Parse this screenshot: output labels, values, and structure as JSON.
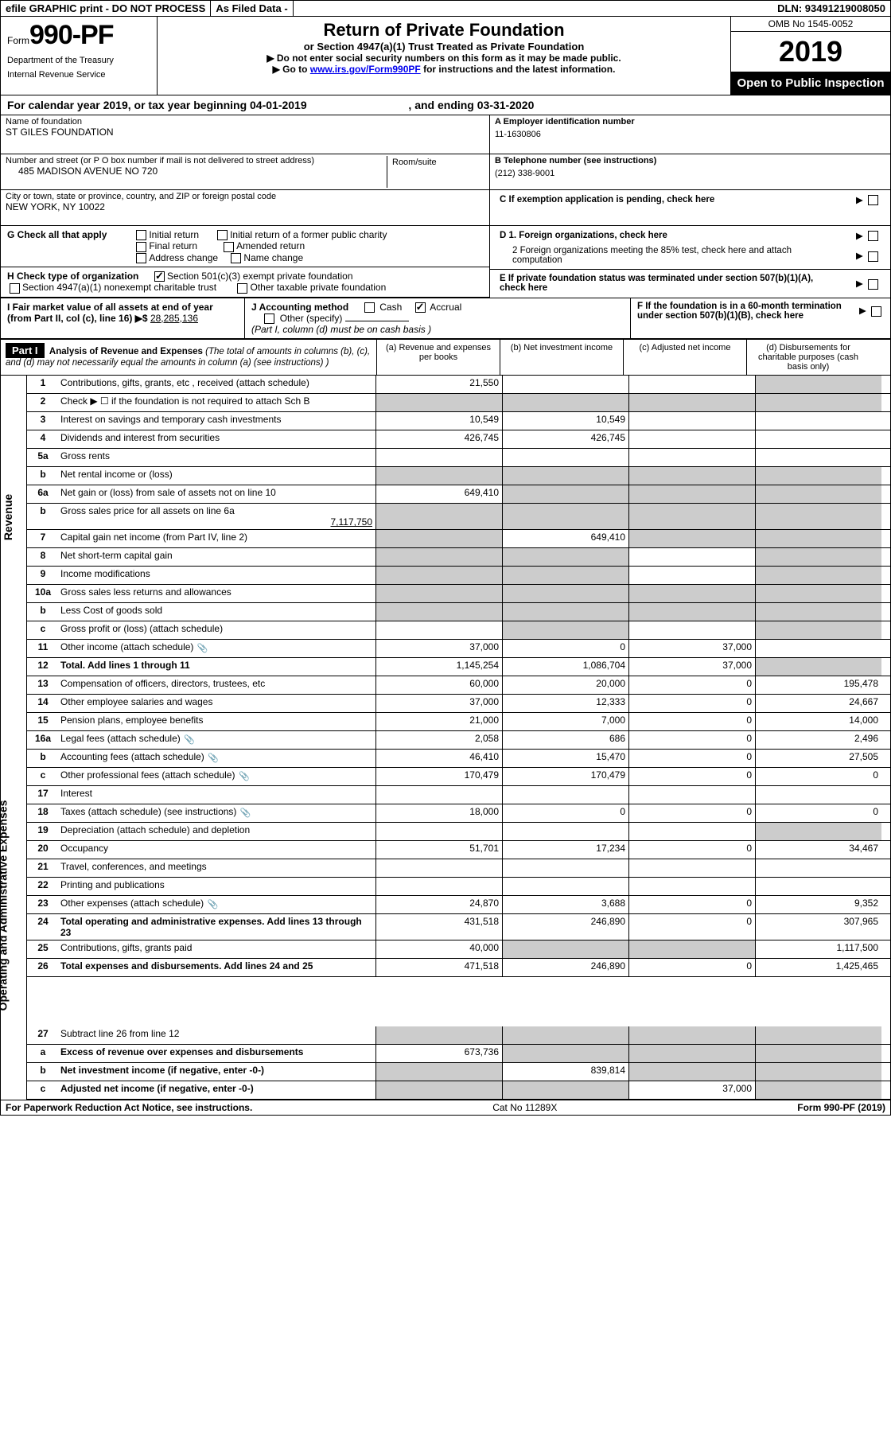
{
  "top": {
    "efile": "efile GRAPHIC print - DO NOT PROCESS",
    "asfiled": "As Filed Data -",
    "dln": "DLN: 93491219008050"
  },
  "header": {
    "form_label": "Form",
    "form_no": "990-PF",
    "dept1": "Department of the Treasury",
    "dept2": "Internal Revenue Service",
    "title": "Return of Private Foundation",
    "sub": "or Section 4947(a)(1) Trust Treated as Private Foundation",
    "note1": "▶ Do not enter social security numbers on this form as it may be made public.",
    "note2_pre": "▶ Go to ",
    "note2_link": "www.irs.gov/Form990PF",
    "note2_post": " for instructions and the latest information.",
    "omb": "OMB No 1545-0052",
    "year": "2019",
    "open": "Open to Public Inspection"
  },
  "cal": {
    "text": "For calendar year 2019, or tax year beginning 04-01-2019",
    "mid": ", and ending 03-31-2020"
  },
  "entity": {
    "name_lbl": "Name of foundation",
    "name": "ST GILES FOUNDATION",
    "addr_lbl": "Number and street (or P O  box number if mail is not delivered to street address)",
    "room_lbl": "Room/suite",
    "addr": "485 MADISON AVENUE NO 720",
    "city_lbl": "City or town, state or province, country, and ZIP or foreign postal code",
    "city": "NEW YORK, NY  10022"
  },
  "right": {
    "a_lbl": "A Employer identification number",
    "a_val": "11-1630806",
    "b_lbl": "B Telephone number (see instructions)",
    "b_val": "(212) 338-9001",
    "c_lbl": "C  If exemption application is pending, check here",
    "d1": "D 1. Foreign organizations, check here",
    "d2": "2  Foreign organizations meeting the 85% test, check here and attach computation",
    "e": "E  If private foundation status was terminated under section 507(b)(1)(A), check here",
    "f": "F  If the foundation is in a 60-month termination under section 507(b)(1)(B), check here"
  },
  "g": {
    "label": "G Check all that apply",
    "opts": [
      "Initial return",
      "Initial return of a former public charity",
      "Final return",
      "Amended return",
      "Address change",
      "Name change"
    ]
  },
  "h": {
    "label": "H Check type of organization",
    "opt1": "Section 501(c)(3) exempt private foundation",
    "opt2": "Section 4947(a)(1) nonexempt charitable trust",
    "opt3": "Other taxable private foundation"
  },
  "i": {
    "label": "I Fair market value of all assets at end of year (from Part II, col  (c), line 16) ▶$  ",
    "val": "28,285,136"
  },
  "j": {
    "label": "J Accounting method",
    "cash": "Cash",
    "accrual": "Accrual",
    "other": "Other (specify)",
    "note": "(Part I, column (d) must be on cash basis )"
  },
  "part1": {
    "label": "Part I",
    "title": "Analysis of Revenue and Expenses",
    "title_note": " (The total of amounts in columns (b), (c), and (d) may not necessarily equal the amounts in column (a) (see instructions) )",
    "col_a": "(a)  Revenue and expenses per books",
    "col_b": "(b)  Net investment income",
    "col_c": "(c)  Adjusted net income",
    "col_d": "(d)  Disbursements for charitable purposes (cash basis only)"
  },
  "side": {
    "rev": "Revenue",
    "oae": "Operating and Administrative Expenses"
  },
  "rows": {
    "r1": {
      "n": "1",
      "l": "Contributions, gifts, grants, etc , received (attach schedule)",
      "a": "21,550"
    },
    "r2": {
      "n": "2",
      "l": "Check ▶ ☐ if the foundation is not required to attach Sch  B"
    },
    "r3": {
      "n": "3",
      "l": "Interest on savings and temporary cash investments",
      "a": "10,549",
      "b": "10,549"
    },
    "r4": {
      "n": "4",
      "l": "Dividends and interest from securities",
      "a": "426,745",
      "b": "426,745"
    },
    "r5a": {
      "n": "5a",
      "l": "Gross rents"
    },
    "r5b": {
      "n": "b",
      "l": "Net rental income or (loss)"
    },
    "r6a": {
      "n": "6a",
      "l": "Net gain or (loss) from sale of assets not on line 10",
      "a": "649,410"
    },
    "r6b": {
      "n": "b",
      "l": "Gross sales price for all assets on line 6a",
      "u": "7,117,750"
    },
    "r7": {
      "n": "7",
      "l": "Capital gain net income (from Part IV, line 2)",
      "b": "649,410"
    },
    "r8": {
      "n": "8",
      "l": "Net short-term capital gain"
    },
    "r9": {
      "n": "9",
      "l": "Income modifications"
    },
    "r10a": {
      "n": "10a",
      "l": "Gross sales less returns and allowances"
    },
    "r10b": {
      "n": "b",
      "l": "Less  Cost of goods sold"
    },
    "r10c": {
      "n": "c",
      "l": "Gross profit or (loss) (attach schedule)"
    },
    "r11": {
      "n": "11",
      "l": "Other income (attach schedule)",
      "a": "37,000",
      "b": "0",
      "c": "37,000",
      "link": true
    },
    "r12": {
      "n": "12",
      "l": "Total. Add lines 1 through 11",
      "a": "1,145,254",
      "b": "1,086,704",
      "c": "37,000",
      "bold": true
    },
    "r13": {
      "n": "13",
      "l": "Compensation of officers, directors, trustees, etc",
      "a": "60,000",
      "b": "20,000",
      "c": "0",
      "d": "195,478"
    },
    "r14": {
      "n": "14",
      "l": "Other employee salaries and wages",
      "a": "37,000",
      "b": "12,333",
      "c": "0",
      "d": "24,667"
    },
    "r15": {
      "n": "15",
      "l": "Pension plans, employee benefits",
      "a": "21,000",
      "b": "7,000",
      "c": "0",
      "d": "14,000"
    },
    "r16a": {
      "n": "16a",
      "l": "Legal fees (attach schedule)",
      "a": "2,058",
      "b": "686",
      "c": "0",
      "d": "2,496",
      "link": true
    },
    "r16b": {
      "n": "b",
      "l": "Accounting fees (attach schedule)",
      "a": "46,410",
      "b": "15,470",
      "c": "0",
      "d": "27,505",
      "link": true
    },
    "r16c": {
      "n": "c",
      "l": "Other professional fees (attach schedule)",
      "a": "170,479",
      "b": "170,479",
      "c": "0",
      "d": "0",
      "link": true
    },
    "r17": {
      "n": "17",
      "l": "Interest"
    },
    "r18": {
      "n": "18",
      "l": "Taxes (attach schedule) (see instructions)",
      "a": "18,000",
      "b": "0",
      "c": "0",
      "d": "0",
      "link": true
    },
    "r19": {
      "n": "19",
      "l": "Depreciation (attach schedule) and depletion"
    },
    "r20": {
      "n": "20",
      "l": "Occupancy",
      "a": "51,701",
      "b": "17,234",
      "c": "0",
      "d": "34,467"
    },
    "r21": {
      "n": "21",
      "l": "Travel, conferences, and meetings"
    },
    "r22": {
      "n": "22",
      "l": "Printing and publications"
    },
    "r23": {
      "n": "23",
      "l": "Other expenses (attach schedule)",
      "a": "24,870",
      "b": "3,688",
      "c": "0",
      "d": "9,352",
      "link": true
    },
    "r24": {
      "n": "24",
      "l": "Total operating and administrative expenses. Add lines 13 through 23",
      "a": "431,518",
      "b": "246,890",
      "c": "0",
      "d": "307,965",
      "bold": true
    },
    "r25": {
      "n": "25",
      "l": "Contributions, gifts, grants paid",
      "a": "40,000",
      "d": "1,117,500"
    },
    "r26": {
      "n": "26",
      "l": "Total expenses and disbursements. Add lines 24 and 25",
      "a": "471,518",
      "b": "246,890",
      "c": "0",
      "d": "1,425,465",
      "bold": true
    },
    "r27": {
      "n": "27",
      "l": "Subtract line 26 from line 12"
    },
    "r27a": {
      "n": "a",
      "l": "Excess of revenue over expenses and disbursements",
      "a": "673,736",
      "bold": true
    },
    "r27b": {
      "n": "b",
      "l": "Net investment income (if negative, enter -0-)",
      "b": "839,814",
      "bold": true
    },
    "r27c": {
      "n": "c",
      "l": "Adjusted net income (if negative, enter -0-)",
      "c": "37,000",
      "bold": true
    }
  },
  "footer": {
    "left": "For Paperwork Reduction Act Notice, see instructions.",
    "mid": "Cat  No  11289X",
    "right": "Form 990-PF (2019)"
  }
}
